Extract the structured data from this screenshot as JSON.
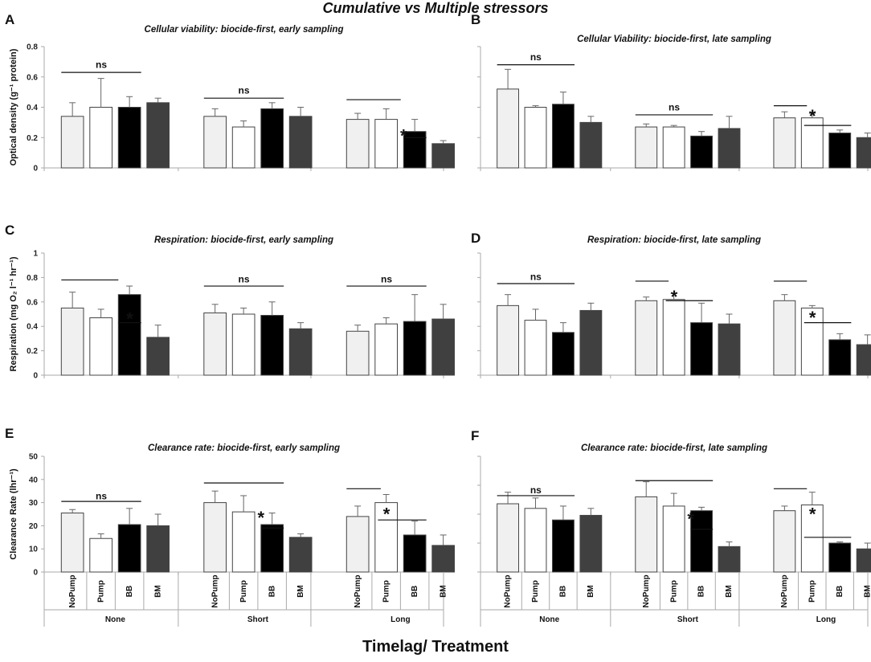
{
  "figure_title": "Cumulative vs Multiple stressors",
  "figure_xlabel": "Timelag/ Treatment",
  "colors": {
    "NoPump": "#f0f0f0",
    "Pump": "#ffffff",
    "BB": "#000000",
    "BM": "#404040",
    "axis": "#aaaaaa",
    "edge": "#444444"
  },
  "chart_data": [
    {
      "panel": "A",
      "type": "bar",
      "title": "Cellular viability: biocide-first, early sampling",
      "ylabel": "Optical density (g⁻¹ protein)",
      "ylim": [
        0,
        0.8
      ],
      "yticks": [
        "0",
        "0.2",
        "0.4",
        "0.6",
        "0.8"
      ],
      "groups": [
        "None",
        "Short",
        "Long"
      ],
      "categories": [
        "NoPump",
        "Pump",
        "BB",
        "BM"
      ],
      "series": [
        {
          "name": "None",
          "values": [
            0.34,
            0.4,
            0.4,
            0.43
          ],
          "errors": [
            0.09,
            0.19,
            0.07,
            0.03
          ]
        },
        {
          "name": "Short",
          "values": [
            0.34,
            0.27,
            0.39,
            0.34
          ],
          "errors": [
            0.05,
            0.04,
            0.04,
            0.06
          ]
        },
        {
          "name": "Long",
          "values": [
            0.32,
            0.32,
            0.24,
            0.16
          ],
          "errors": [
            0.04,
            0.07,
            0.08,
            0.02
          ]
        }
      ],
      "annotations": [
        {
          "type": "line",
          "x1": 0.6,
          "x2": 3.4,
          "y": 0.63
        },
        {
          "type": "text",
          "text": "ns",
          "x": 2.0,
          "y": 0.66
        },
        {
          "type": "line",
          "x1": 5.6,
          "x2": 8.4,
          "y": 0.46
        },
        {
          "type": "text",
          "text": "ns",
          "x": 7.0,
          "y": 0.49
        },
        {
          "type": "line",
          "x1": 10.6,
          "x2": 12.5,
          "y": 0.45
        },
        {
          "type": "star",
          "text": "*",
          "x": 12.6,
          "y": 0.22
        },
        {
          "type": "line",
          "x1": 12.6,
          "x2": 13.4,
          "y": 0.2
        }
      ]
    },
    {
      "panel": "B",
      "type": "bar",
      "title": "Cellular Viability: biocide-first, late sampling",
      "ylabel": "",
      "ylim": [
        0,
        0.8
      ],
      "yticks": [],
      "groups": [
        "None",
        "Short",
        "Long"
      ],
      "categories": [
        "NoPump",
        "Pump",
        "BB",
        "BM"
      ],
      "series": [
        {
          "name": "None",
          "values": [
            0.52,
            0.4,
            0.42,
            0.3
          ],
          "errors": [
            0.13,
            0.01,
            0.08,
            0.04
          ]
        },
        {
          "name": "Short",
          "values": [
            0.27,
            0.27,
            0.21,
            0.26
          ],
          "errors": [
            0.02,
            0.01,
            0.03,
            0.08
          ]
        },
        {
          "name": "Long",
          "values": [
            0.33,
            0.33,
            0.23,
            0.2
          ],
          "errors": [
            0.04,
            0.03,
            0.02,
            0.03
          ]
        }
      ],
      "annotations": [
        {
          "type": "line",
          "x1": 0.6,
          "x2": 3.4,
          "y": 0.68
        },
        {
          "type": "text",
          "text": "ns",
          "x": 2.0,
          "y": 0.71
        },
        {
          "type": "line",
          "x1": 5.6,
          "x2": 8.4,
          "y": 0.35
        },
        {
          "type": "text",
          "text": "ns",
          "x": 7.0,
          "y": 0.38
        },
        {
          "type": "line",
          "x1": 10.6,
          "x2": 11.8,
          "y": 0.41
        },
        {
          "type": "star",
          "text": "*",
          "x": 12.0,
          "y": 0.35
        },
        {
          "type": "line",
          "x1": 11.7,
          "x2": 13.4,
          "y": 0.28
        }
      ]
    },
    {
      "panel": "C",
      "type": "bar",
      "title": "Respiration: biocide-first, early sampling",
      "ylabel": "Respiration (mg O₂ l⁻¹ hr⁻¹)",
      "ylim": [
        0,
        1
      ],
      "yticks": [
        "0",
        "0.2",
        "0.4",
        "0.6",
        "0.8",
        "1"
      ],
      "groups": [
        "None",
        "Short",
        "Long"
      ],
      "categories": [
        "NoPump",
        "Pump",
        "BB",
        "BM"
      ],
      "series": [
        {
          "name": "None",
          "values": [
            0.55,
            0.47,
            0.66,
            0.31
          ],
          "errors": [
            0.13,
            0.07,
            0.07,
            0.1
          ]
        },
        {
          "name": "Short",
          "values": [
            0.51,
            0.5,
            0.49,
            0.38
          ],
          "errors": [
            0.07,
            0.05,
            0.11,
            0.05
          ]
        },
        {
          "name": "Long",
          "values": [
            0.36,
            0.42,
            0.44,
            0.46
          ],
          "errors": [
            0.05,
            0.05,
            0.22,
            0.12
          ]
        }
      ],
      "annotations": [
        {
          "type": "line",
          "x1": 0.6,
          "x2": 2.6,
          "y": 0.78
        },
        {
          "type": "star",
          "text": "*",
          "x": 3.0,
          "y": 0.47
        },
        {
          "type": "line",
          "x1": 2.6,
          "x2": 3.4,
          "y": 0.43
        },
        {
          "type": "line",
          "x1": 5.6,
          "x2": 8.4,
          "y": 0.73
        },
        {
          "type": "text",
          "text": "ns",
          "x": 7.0,
          "y": 0.76
        },
        {
          "type": "line",
          "x1": 10.6,
          "x2": 13.4,
          "y": 0.73
        },
        {
          "type": "text",
          "text": "ns",
          "x": 12.0,
          "y": 0.76
        }
      ]
    },
    {
      "panel": "D",
      "type": "bar",
      "title": "Respiration: biocide-first, late sampling",
      "ylabel": "",
      "ylim": [
        0,
        1
      ],
      "yticks": [],
      "groups": [
        "None",
        "Short",
        "Long"
      ],
      "categories": [
        "NoPump",
        "Pump",
        "BB",
        "BM"
      ],
      "series": [
        {
          "name": "None",
          "values": [
            0.57,
            0.45,
            0.35,
            0.53
          ],
          "errors": [
            0.09,
            0.09,
            0.08,
            0.06
          ]
        },
        {
          "name": "Short",
          "values": [
            0.61,
            0.62,
            0.43,
            0.42
          ],
          "errors": [
            0.03,
            0.05,
            0.16,
            0.08
          ]
        },
        {
          "name": "Long",
          "values": [
            0.61,
            0.55,
            0.29,
            0.25
          ],
          "errors": [
            0.05,
            0.02,
            0.05,
            0.08
          ]
        }
      ],
      "annotations": [
        {
          "type": "line",
          "x1": 0.6,
          "x2": 3.4,
          "y": 0.75
        },
        {
          "type": "text",
          "text": "ns",
          "x": 2.0,
          "y": 0.78
        },
        {
          "type": "line",
          "x1": 5.6,
          "x2": 6.8,
          "y": 0.77
        },
        {
          "type": "star",
          "text": "*",
          "x": 7.0,
          "y": 0.65
        },
        {
          "type": "line",
          "x1": 6.7,
          "x2": 8.4,
          "y": 0.61
        },
        {
          "type": "line",
          "x1": 10.6,
          "x2": 11.8,
          "y": 0.77
        },
        {
          "type": "star",
          "text": "*",
          "x": 12.0,
          "y": 0.48
        },
        {
          "type": "line",
          "x1": 11.7,
          "x2": 13.4,
          "y": 0.43
        }
      ]
    },
    {
      "panel": "E",
      "type": "bar",
      "title": "Clearance rate: biocide-first, early sampling",
      "ylabel": "Clearance Rate (lhr⁻¹)",
      "ylim": [
        0,
        50
      ],
      "yticks": [
        "0",
        "10",
        "20",
        "30",
        "40",
        "50"
      ],
      "groups": [
        "None",
        "Short",
        "Long"
      ],
      "categories": [
        "NoPump",
        "Pump",
        "BB",
        "BM"
      ],
      "series": [
        {
          "name": "None",
          "values": [
            25.5,
            14.5,
            20.5,
            20
          ],
          "errors": [
            1.5,
            2,
            7,
            5
          ]
        },
        {
          "name": "Short",
          "values": [
            30,
            26,
            20.5,
            15
          ],
          "errors": [
            5,
            7,
            5,
            1.5
          ]
        },
        {
          "name": "Long",
          "values": [
            24,
            30,
            16,
            11.5
          ],
          "errors": [
            4.5,
            3.5,
            6,
            4.5
          ]
        }
      ],
      "annotations": [
        {
          "type": "line",
          "x1": 0.6,
          "x2": 3.4,
          "y": 30.5
        },
        {
          "type": "text",
          "text": "ns",
          "x": 2.0,
          "y": 31.5
        },
        {
          "type": "line",
          "x1": 5.6,
          "x2": 8.4,
          "y": 38.5
        },
        {
          "type": "star",
          "text": "*",
          "x": 7.6,
          "y": 24
        },
        {
          "type": "line",
          "x1": 7.6,
          "x2": 8.4,
          "y": 19
        },
        {
          "type": "line",
          "x1": 10.6,
          "x2": 11.8,
          "y": 36
        },
        {
          "type": "star",
          "text": "*",
          "x": 12.0,
          "y": 25.5
        },
        {
          "type": "line",
          "x1": 11.7,
          "x2": 13.4,
          "y": 22.5
        }
      ],
      "xgroup_labels": [
        "None",
        "Short",
        "Long"
      ],
      "xcat_labels": [
        "NoPump",
        "Pump",
        "BB",
        "BM"
      ]
    },
    {
      "panel": "F",
      "type": "bar",
      "title": "Clearance rate: biocide-first, late sampling",
      "ylabel": "",
      "ylim": [
        0,
        50
      ],
      "yticks": [],
      "groups": [
        "None",
        "Short",
        "Long"
      ],
      "categories": [
        "NoPump",
        "Pump",
        "BB",
        "BM"
      ],
      "series": [
        {
          "name": "None",
          "values": [
            29.5,
            27.5,
            22.5,
            24.5
          ],
          "errors": [
            5,
            4.5,
            6,
            3
          ]
        },
        {
          "name": "Short",
          "values": [
            32.5,
            28.5,
            26.5,
            11
          ],
          "errors": [
            6.5,
            5.5,
            1.5,
            2
          ]
        },
        {
          "name": "Long",
          "values": [
            26.5,
            29,
            12.5,
            10
          ],
          "errors": [
            2,
            5.5,
            0.5,
            2.5
          ]
        }
      ],
      "annotations": [
        {
          "type": "line",
          "x1": 0.6,
          "x2": 3.4,
          "y": 33
        },
        {
          "type": "text",
          "text": "ns",
          "x": 2.0,
          "y": 34
        },
        {
          "type": "line",
          "x1": 5.6,
          "x2": 8.4,
          "y": 39.5
        },
        {
          "type": "star",
          "text": "*",
          "x": 7.6,
          "y": 23.5
        },
        {
          "type": "line",
          "x1": 7.6,
          "x2": 8.4,
          "y": 18.5
        },
        {
          "type": "line",
          "x1": 10.6,
          "x2": 11.8,
          "y": 36
        },
        {
          "type": "star",
          "text": "*",
          "x": 12.0,
          "y": 25.5
        },
        {
          "type": "line",
          "x1": 11.7,
          "x2": 13.4,
          "y": 15
        }
      ],
      "xgroup_labels": [
        "None",
        "Short",
        "Long"
      ],
      "xcat_labels": [
        "NoPump",
        "Pump",
        "BB",
        "BM"
      ]
    }
  ]
}
